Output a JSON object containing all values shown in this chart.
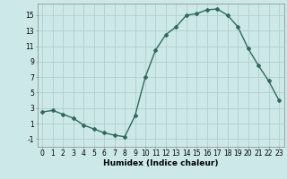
{
  "x": [
    0,
    1,
    2,
    3,
    4,
    5,
    6,
    7,
    8,
    9,
    10,
    11,
    12,
    13,
    14,
    15,
    16,
    17,
    18,
    19,
    20,
    21,
    22,
    23
  ],
  "y": [
    2.5,
    2.7,
    2.2,
    1.7,
    0.8,
    0.3,
    -0.2,
    -0.5,
    -0.7,
    2.0,
    7.0,
    10.5,
    12.5,
    13.5,
    15.0,
    15.2,
    15.7,
    15.8,
    15.0,
    13.5,
    10.7,
    8.5,
    6.5,
    4.0
  ],
  "line_color": "#2e6b5e",
  "marker": "D",
  "marker_size": 2.0,
  "linewidth": 1.0,
  "bg_color": "#cce8e8",
  "grid_color": "#b0c8c8",
  "xlabel": "Humidex (Indice chaleur)",
  "xlim": [
    -0.5,
    23.5
  ],
  "ylim": [
    -2,
    16.5
  ],
  "yticks": [
    -1,
    1,
    3,
    5,
    7,
    9,
    11,
    13,
    15
  ],
  "xticks": [
    0,
    1,
    2,
    3,
    4,
    5,
    6,
    7,
    8,
    9,
    10,
    11,
    12,
    13,
    14,
    15,
    16,
    17,
    18,
    19,
    20,
    21,
    22,
    23
  ],
  "xlabel_fontsize": 6.5,
  "tick_fontsize": 5.5
}
